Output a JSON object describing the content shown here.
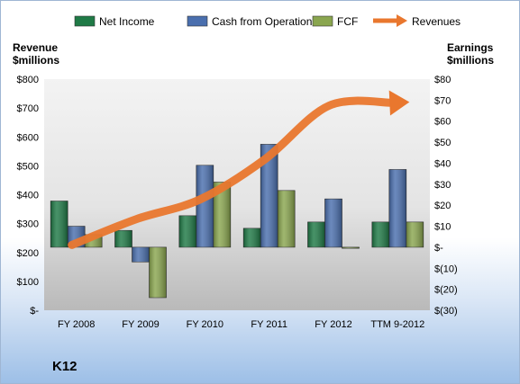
{
  "chart_data": {
    "type": "bar",
    "title": "",
    "categories": [
      "FY 2008",
      "FY 2009",
      "FY 2010",
      "FY 2011",
      "FY 2012",
      "TTM 9-2012"
    ],
    "series": [
      {
        "name": "Net Income",
        "axis": "right",
        "color": "#1f7a46",
        "values": [
          22,
          8,
          15,
          9,
          12,
          12
        ]
      },
      {
        "name": "Cash from Operations",
        "axis": "right",
        "color": "#4a6fae",
        "values": [
          10,
          -7,
          39,
          49,
          23,
          37
        ]
      },
      {
        "name": "FCF",
        "axis": "right",
        "color": "#8aa64f",
        "values": [
          6,
          -24,
          31,
          27,
          0,
          12
        ]
      },
      {
        "name": "Revenues",
        "axis": "left",
        "type": "line",
        "color": "#e9772e",
        "values": [
          226,
          315,
          384,
          522,
          708,
          718
        ]
      }
    ],
    "left_axis": {
      "label_lines": [
        "Revenue",
        "$millions"
      ],
      "ylim": [
        0,
        800
      ],
      "tick_values": [
        0,
        100,
        200,
        300,
        400,
        500,
        600,
        700,
        800
      ],
      "tick_labels": [
        "$-",
        "$100",
        "$200",
        "$300",
        "$400",
        "$500",
        "$600",
        "$700",
        "$800"
      ]
    },
    "right_axis": {
      "label_lines": [
        "Earnings",
        "$millions"
      ],
      "ylim": [
        -30,
        80
      ],
      "tick_values": [
        -30,
        -20,
        -10,
        0,
        10,
        20,
        30,
        40,
        50,
        60,
        70,
        80
      ],
      "tick_labels": [
        "$(30)",
        "$(20)",
        "$(10)",
        "$-",
        "$10",
        "$20",
        "$30",
        "$40",
        "$50",
        "$60",
        "$70",
        "$80"
      ]
    },
    "legend_position": "top",
    "grid": false
  },
  "company": "K12"
}
